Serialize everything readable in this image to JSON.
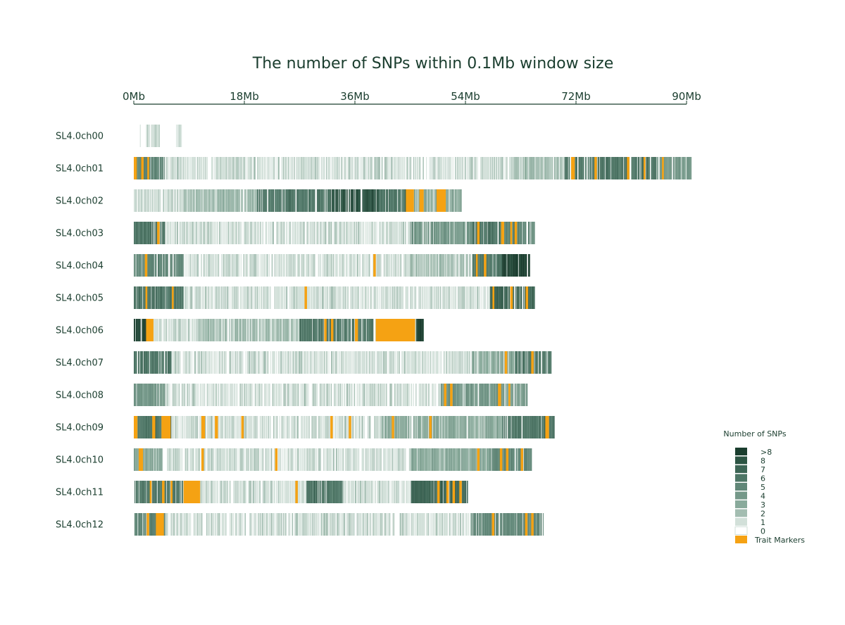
{
  "chart_data": {
    "type": "heatmap",
    "title": "The number of SNPs within 0.1Mb window size",
    "x_ticks": [
      "0Mb",
      "18Mb",
      "36Mb",
      "54Mb",
      "72Mb",
      "90Mb"
    ],
    "x_tick_values": [
      0,
      18,
      36,
      54,
      72,
      90
    ],
    "xlim": [
      0,
      90
    ],
    "window_size_mb": 0.1,
    "chromosomes": [
      {
        "name": "SL4.0ch00",
        "length": 7.8,
        "density": [
          [
            0.8,
            1.0,
            0
          ],
          [
            2.0,
            4.2,
            1
          ],
          [
            6.8,
            7.8,
            1
          ]
        ],
        "markers": []
      },
      {
        "name": "SL4.0ch01",
        "length": 90.8,
        "density": [
          [
            0,
            5,
            5
          ],
          [
            5,
            20,
            1
          ],
          [
            20,
            45,
            1
          ],
          [
            45,
            62,
            1
          ],
          [
            62,
            70,
            2
          ],
          [
            70,
            85,
            6
          ],
          [
            85,
            90.8,
            4
          ]
        ],
        "markers": [
          [
            0,
            0.5
          ],
          [
            1.2,
            1.6
          ],
          [
            2.2,
            2.5
          ],
          [
            71.2,
            71.8
          ],
          [
            75.0,
            75.4
          ],
          [
            80.3,
            80.7
          ],
          [
            83.0,
            83.3
          ],
          [
            86.0,
            86.3
          ]
        ]
      },
      {
        "name": "SL4.0ch02",
        "length": 53.4,
        "density": [
          [
            0,
            8,
            1
          ],
          [
            8,
            20,
            2
          ],
          [
            20,
            32,
            6
          ],
          [
            32,
            40,
            8
          ],
          [
            40,
            45,
            6
          ],
          [
            45,
            53.4,
            3
          ]
        ],
        "markers": [
          [
            44.3,
            45.6
          ],
          [
            46.5,
            47.2
          ],
          [
            49.3,
            50.8
          ]
        ]
      },
      {
        "name": "SL4.0ch03",
        "length": 65.3,
        "density": [
          [
            0,
            5,
            6
          ],
          [
            5,
            25,
            1
          ],
          [
            25,
            45,
            1
          ],
          [
            45,
            55,
            4
          ],
          [
            55,
            60,
            6
          ],
          [
            60,
            65.3,
            5
          ]
        ],
        "markers": [
          [
            3.8,
            4.2
          ],
          [
            55.9,
            56.3
          ],
          [
            59.8,
            60.3
          ],
          [
            61.3,
            61.6
          ],
          [
            62.0,
            62.4
          ]
        ]
      },
      {
        "name": "SL4.0ch04",
        "length": 64.5,
        "density": [
          [
            0,
            8,
            5
          ],
          [
            8,
            45,
            1
          ],
          [
            45,
            55,
            2
          ],
          [
            55,
            60,
            6
          ],
          [
            60,
            64.5,
            9
          ]
        ],
        "markers": [
          [
            1.8,
            2.2
          ],
          [
            39.0,
            39.4
          ],
          [
            55.7,
            56.0
          ],
          [
            57.0,
            57.4
          ]
        ]
      },
      {
        "name": "SL4.0ch05",
        "length": 65.3,
        "density": [
          [
            0,
            8,
            6
          ],
          [
            8,
            58,
            1
          ],
          [
            58,
            65.3,
            7
          ]
        ],
        "markers": [
          [
            1.9,
            2.2
          ],
          [
            6.2,
            6.5
          ],
          [
            27.8,
            28.2
          ],
          [
            58.4,
            58.7
          ],
          [
            61.3,
            61.7
          ],
          [
            63.8,
            64.2
          ]
        ]
      },
      {
        "name": "SL4.0ch06",
        "length": 47.3,
        "density": [
          [
            0,
            2,
            9
          ],
          [
            2,
            10,
            1
          ],
          [
            10,
            27,
            2
          ],
          [
            27,
            39,
            6
          ],
          [
            39,
            46,
            1
          ],
          [
            46,
            47.3,
            9
          ]
        ],
        "markers": [
          [
            2.0,
            3.2
          ],
          [
            31.0,
            31.4
          ],
          [
            32.1,
            32.5
          ],
          [
            36.0,
            36.5
          ],
          [
            39.4,
            45.8
          ]
        ]
      },
      {
        "name": "SL4.0ch07",
        "length": 68.0,
        "density": [
          [
            0,
            6,
            6
          ],
          [
            6,
            55,
            1
          ],
          [
            55,
            62,
            3
          ],
          [
            62,
            68,
            6
          ]
        ],
        "markers": [
          [
            60.4,
            60.8
          ],
          [
            64.7,
            65.1
          ]
        ]
      },
      {
        "name": "SL4.0ch08",
        "length": 64.1,
        "density": [
          [
            0,
            5,
            4
          ],
          [
            5,
            50,
            1
          ],
          [
            50,
            64.1,
            4
          ]
        ],
        "markers": [
          [
            50.5,
            50.9
          ],
          [
            51.5,
            51.9
          ],
          [
            59.3,
            59.8
          ],
          [
            61.0,
            61.3
          ]
        ]
      },
      {
        "name": "SL4.0ch09",
        "length": 68.5,
        "density": [
          [
            0,
            6,
            6
          ],
          [
            6,
            40,
            1
          ],
          [
            40,
            60,
            3
          ],
          [
            60,
            68.5,
            6
          ]
        ],
        "markers": [
          [
            0.0,
            0.6
          ],
          [
            3.0,
            3.5
          ],
          [
            4.5,
            6.0
          ],
          [
            11.0,
            11.6
          ],
          [
            13.2,
            13.7
          ],
          [
            17.5,
            17.9
          ],
          [
            32.0,
            32.4
          ],
          [
            35.0,
            35.4
          ],
          [
            42.0,
            42.4
          ],
          [
            48.1,
            48.5
          ],
          [
            67.0,
            67.6
          ]
        ]
      },
      {
        "name": "SL4.0ch10",
        "length": 64.8,
        "density": [
          [
            0,
            5,
            3
          ],
          [
            5,
            45,
            1
          ],
          [
            45,
            58,
            3
          ],
          [
            58,
            64.8,
            5
          ]
        ],
        "markers": [
          [
            0.8,
            1.5
          ],
          [
            11.0,
            11.4
          ],
          [
            23.0,
            23.4
          ],
          [
            55.9,
            56.3
          ],
          [
            59.6,
            60.0
          ],
          [
            60.6,
            61.0
          ],
          [
            63.0,
            63.4
          ]
        ]
      },
      {
        "name": "SL4.0ch11",
        "length": 54.4,
        "density": [
          [
            0,
            10,
            6
          ],
          [
            10,
            28,
            1
          ],
          [
            28,
            34,
            6
          ],
          [
            34,
            45,
            1
          ],
          [
            45,
            54.4,
            7
          ]
        ],
        "markers": [
          [
            2.6,
            2.9
          ],
          [
            4.6,
            5.0
          ],
          [
            6.0,
            6.3
          ],
          [
            8.1,
            10.8
          ],
          [
            26.3,
            26.7
          ],
          [
            49.4,
            49.8
          ],
          [
            50.9,
            51.3
          ],
          [
            51.9,
            52.3
          ],
          [
            53.0,
            53.4
          ]
        ]
      },
      {
        "name": "SL4.0ch12",
        "length": 66.7,
        "density": [
          [
            0,
            5,
            5
          ],
          [
            5,
            55,
            1
          ],
          [
            55,
            66.7,
            5
          ]
        ],
        "markers": [
          [
            2.1,
            2.5
          ],
          [
            3.6,
            4.9
          ],
          [
            58.3,
            58.7
          ],
          [
            63.7,
            64.1
          ],
          [
            64.7,
            65.1
          ]
        ]
      }
    ],
    "legend": {
      "title": "Number of SNPs",
      "levels": [
        {
          "label": ">8",
          "color": "#1a3d2e"
        },
        {
          "label": "8",
          "color": "#2c5443"
        },
        {
          "label": "7",
          "color": "#3d6555"
        },
        {
          "label": "6",
          "color": "#4e7666"
        },
        {
          "label": "5",
          "color": "#618778"
        },
        {
          "label": "4",
          "color": "#759889"
        },
        {
          "label": "3",
          "color": "#89aa9b"
        },
        {
          "label": "2",
          "color": "#a3bdb1"
        },
        {
          "label": "1",
          "color": "#d2e0d9"
        },
        {
          "label": "0",
          "color": "#ffffff"
        }
      ],
      "marker": {
        "label": "Trait Markers",
        "color": "#f5a213"
      }
    },
    "axis_color": "#1a3d2e",
    "legend_placement": "right"
  }
}
